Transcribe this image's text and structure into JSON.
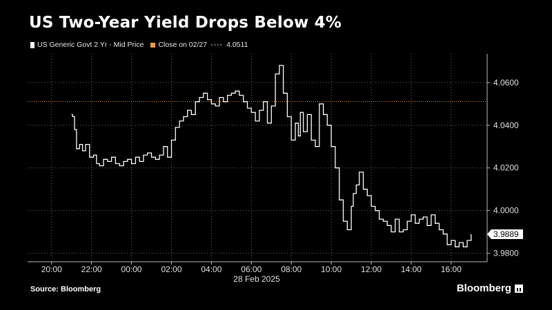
{
  "chart_data": {
    "type": "line",
    "title": "US Two-Year Yield Drops Below 4%",
    "legend": {
      "series_label": "US Generic Govt 2 Yr - Mid Price",
      "reference_label": "Close on 02/27",
      "reference_dashes": "----",
      "reference_value_text": "4.0511"
    },
    "date_label": "28 Feb 2025",
    "x_ticks": [
      "20:00",
      "22:00",
      "00:00",
      "02:00",
      "04:00",
      "06:00",
      "08:00",
      "10:00",
      "12:00",
      "14:00",
      "16:00"
    ],
    "y_ticks": [
      "3.9800",
      "4.0000",
      "4.0200",
      "4.0400",
      "4.0600"
    ],
    "ylim": [
      3.976,
      4.0735
    ],
    "xlim_hours": [
      -5.2,
      17.8
    ],
    "reference_line": {
      "value": 4.0511,
      "color": "#f29a3a"
    },
    "last_value": {
      "value": 3.9889,
      "label": "3.9889"
    },
    "series": [
      {
        "name": "US Generic Govt 2 Yr - Mid Price",
        "color": "#ffffff",
        "x_hours": [
          -3.0,
          -2.95,
          -2.85,
          -2.75,
          -2.6,
          -2.45,
          -2.3,
          -2.1,
          -1.9,
          -1.75,
          -1.6,
          -1.4,
          -1.2,
          -1.0,
          -0.8,
          -0.6,
          -0.4,
          -0.2,
          0.0,
          0.2,
          0.4,
          0.6,
          0.8,
          1.0,
          1.2,
          1.4,
          1.6,
          1.8,
          2.0,
          2.2,
          2.4,
          2.6,
          2.8,
          3.0,
          3.2,
          3.4,
          3.6,
          3.8,
          4.0,
          4.2,
          4.4,
          4.6,
          4.8,
          5.0,
          5.2,
          5.4,
          5.6,
          5.8,
          6.0,
          6.2,
          6.4,
          6.6,
          6.8,
          7.0,
          7.2,
          7.4,
          7.6,
          7.8,
          8.0,
          8.2,
          8.35,
          8.45,
          8.6,
          8.8,
          9.0,
          9.2,
          9.4,
          9.6,
          9.8,
          10.0,
          10.2,
          10.4,
          10.6,
          10.8,
          11.0,
          11.1,
          11.25,
          11.4,
          11.6,
          11.8,
          12.0,
          12.2,
          12.4,
          12.6,
          12.8,
          13.0,
          13.2,
          13.4,
          13.6,
          13.8,
          14.0,
          14.2,
          14.4,
          14.6,
          14.8,
          15.0,
          15.2,
          15.4,
          15.6,
          15.8,
          16.0,
          16.2,
          16.4,
          16.6,
          16.8,
          17.0
        ],
        "values": [
          4.045,
          4.044,
          4.038,
          4.029,
          4.031,
          4.028,
          4.031,
          4.025,
          4.026,
          4.022,
          4.021,
          4.024,
          4.023,
          4.025,
          4.022,
          4.021,
          4.023,
          4.024,
          4.022,
          4.025,
          4.023,
          4.026,
          4.027,
          4.025,
          4.024,
          4.026,
          4.03,
          4.025,
          4.033,
          4.039,
          4.042,
          4.044,
          4.047,
          4.045,
          4.051,
          4.053,
          4.055,
          4.052,
          4.05,
          4.049,
          4.053,
          4.051,
          4.054,
          4.055,
          4.056,
          4.054,
          4.051,
          4.048,
          4.046,
          4.042,
          4.047,
          4.051,
          4.041,
          4.049,
          4.064,
          4.068,
          4.055,
          4.044,
          4.033,
          4.041,
          4.035,
          4.046,
          4.037,
          4.045,
          4.033,
          4.03,
          4.05,
          4.045,
          4.04,
          4.03,
          4.02,
          4.005,
          3.995,
          3.991,
          4.002,
          4.008,
          4.012,
          4.018,
          4.01,
          4.007,
          4.002,
          4.0,
          3.996,
          3.995,
          3.993,
          3.99,
          3.996,
          3.99,
          3.991,
          3.995,
          3.998,
          3.994,
          3.996,
          3.997,
          3.993,
          3.998,
          3.994,
          3.991,
          3.989,
          3.984,
          3.986,
          3.983,
          3.985,
          3.983,
          3.986,
          3.989
        ]
      }
    ]
  },
  "footer": {
    "source": "Source: Bloomberg",
    "brand": "Bloomberg"
  }
}
